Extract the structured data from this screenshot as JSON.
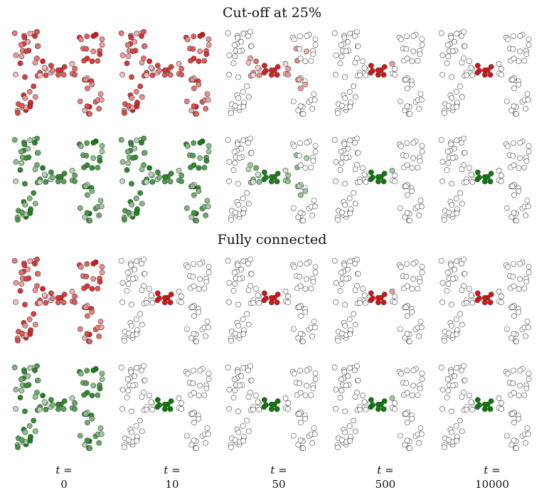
{
  "titles": {
    "top": "Cut-off at 25%",
    "bottom": "Fully connected"
  },
  "time_axis": {
    "var": "t",
    "eq": "=",
    "values": [
      "0",
      "10",
      "50",
      "500",
      "10000"
    ]
  },
  "chart_data": {
    "type": "scatter",
    "description_rows": [
      "Cut-off at 25%",
      "Fully connected"
    ],
    "columns_t": [
      0,
      10,
      50,
      500,
      10000
    ],
    "colors": {
      "red": "#dd1111",
      "green": "#0b7a0b",
      "outline": "#444444",
      "empty": "#ffffff"
    },
    "point_count": 90,
    "state": {
      "cutoff_red": [
        "full",
        "full",
        "partial",
        "cluster",
        "cluster"
      ],
      "cutoff_green": [
        "full",
        "full",
        "partial",
        "cluster",
        "cluster"
      ],
      "full_red": [
        "full",
        "cluster",
        "cluster",
        "cluster",
        "cluster"
      ],
      "full_green": [
        "full",
        "cluster",
        "cluster",
        "cluster",
        "cluster"
      ]
    }
  }
}
